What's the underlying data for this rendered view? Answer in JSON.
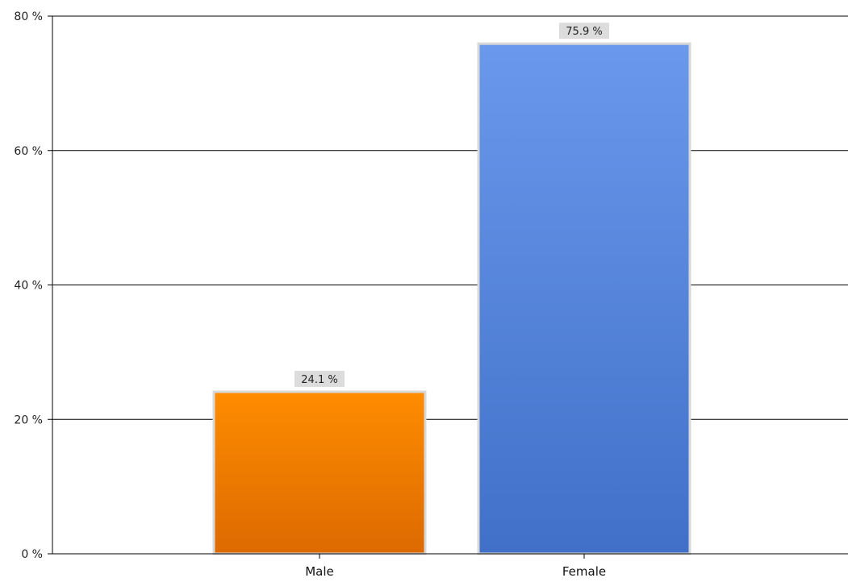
{
  "chart_data": {
    "type": "bar",
    "title": "",
    "xlabel": "",
    "ylabel": "",
    "categories": [
      "Male",
      "Female"
    ],
    "values": [
      24.1,
      75.9
    ],
    "data_labels": [
      "24.1 %",
      "75.9 %"
    ],
    "colors": [
      {
        "top": "#ff8c00",
        "bottom": "#dc6a00"
      },
      {
        "top": "#6a98ec",
        "bottom": "#4070c8"
      }
    ],
    "ylim": [
      0,
      80
    ],
    "y_ticks": [
      0,
      20,
      40,
      60,
      80
    ],
    "y_tick_labels": [
      "0 %",
      "20 %",
      "40 %",
      "60 %",
      "80 %"
    ],
    "grid": true,
    "legend": "none"
  }
}
